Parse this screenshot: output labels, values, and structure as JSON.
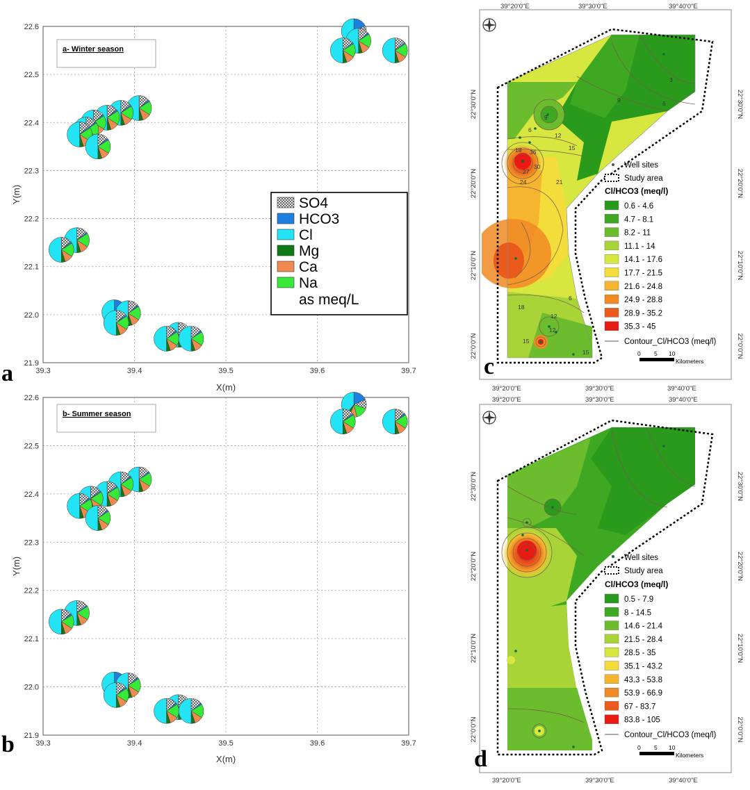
{
  "panels": {
    "a": {
      "letter": "a",
      "title": "a- Winter season"
    },
    "b": {
      "letter": "b",
      "title": "b- Summer season"
    },
    "c": {
      "letter": "c"
    },
    "d": {
      "letter": "d"
    }
  },
  "pie_axes": {
    "xlabel": "X(m)",
    "ylabel": "Y(m)",
    "x_ticks": [
      "39.3",
      "39.4",
      "39.5",
      "39.6",
      "39.7"
    ],
    "y_ticks": [
      "22.6",
      "22.5",
      "22.4",
      "22.3",
      "22.2",
      "22.1",
      "22.0",
      "21.9"
    ]
  },
  "pie_legend": {
    "items": [
      {
        "label": "SO4",
        "color": "hatch"
      },
      {
        "label": "HCO3",
        "color": "#1f7fe0"
      },
      {
        "label": "Cl",
        "color": "#22e4f4"
      },
      {
        "label": "Mg",
        "color": "#0e7a16"
      },
      {
        "label": "Ca",
        "color": "#f08a50"
      },
      {
        "label": "Na",
        "color": "#38ea38"
      }
    ],
    "units": "as meq/L"
  },
  "chart_data": [
    {
      "type": "scatter",
      "title": "a- Winter season",
      "xlabel": "X(m)",
      "ylabel": "Y(m)",
      "xlim": [
        39.3,
        39.7
      ],
      "ylim": [
        21.9,
        22.6
      ],
      "marker": "pie (SO4, HCO3, Cl, Mg, Ca, Na as meq/L)",
      "points": [
        {
          "x": 39.64,
          "y": 22.59,
          "hco3": true
        },
        {
          "x": 39.645,
          "y": 22.57
        },
        {
          "x": 39.628,
          "y": 22.55
        },
        {
          "x": 39.685,
          "y": 22.55
        },
        {
          "x": 39.405,
          "y": 22.43
        },
        {
          "x": 39.385,
          "y": 22.42
        },
        {
          "x": 39.37,
          "y": 22.41
        },
        {
          "x": 39.355,
          "y": 22.4
        },
        {
          "x": 39.347,
          "y": 22.385
        },
        {
          "x": 39.34,
          "y": 22.375
        },
        {
          "x": 39.36,
          "y": 22.35
        },
        {
          "x": 39.337,
          "y": 22.155
        },
        {
          "x": 39.32,
          "y": 22.135
        },
        {
          "x": 39.378,
          "y": 22.005,
          "hco3": true
        },
        {
          "x": 39.393,
          "y": 22.003
        },
        {
          "x": 39.38,
          "y": 21.983
        },
        {
          "x": 39.448,
          "y": 21.958
        },
        {
          "x": 39.435,
          "y": 21.95
        },
        {
          "x": 39.462,
          "y": 21.95
        }
      ]
    },
    {
      "type": "scatter",
      "title": "b- Summer season",
      "xlabel": "X(m)",
      "ylabel": "Y(m)",
      "xlim": [
        39.3,
        39.7
      ],
      "ylim": [
        21.9,
        22.6
      ],
      "marker": "pie (SO4, HCO3, Cl, Mg, Ca, Na as meq/L)",
      "points": [
        {
          "x": 39.64,
          "y": 22.585,
          "hco3": true
        },
        {
          "x": 39.628,
          "y": 22.55
        },
        {
          "x": 39.685,
          "y": 22.55
        },
        {
          "x": 39.405,
          "y": 22.43
        },
        {
          "x": 39.385,
          "y": 22.42
        },
        {
          "x": 39.37,
          "y": 22.4
        },
        {
          "x": 39.352,
          "y": 22.39
        },
        {
          "x": 39.34,
          "y": 22.375
        },
        {
          "x": 39.36,
          "y": 22.35
        },
        {
          "x": 39.337,
          "y": 22.153
        },
        {
          "x": 39.32,
          "y": 22.135
        },
        {
          "x": 39.378,
          "y": 22.005,
          "hco3": true
        },
        {
          "x": 39.393,
          "y": 22.003
        },
        {
          "x": 39.38,
          "y": 21.983
        },
        {
          "x": 39.448,
          "y": 21.958
        },
        {
          "x": 39.435,
          "y": 21.95
        },
        {
          "x": 39.462,
          "y": 21.95
        }
      ]
    }
  ],
  "maps": {
    "c": {
      "top_coords": [
        "39°20'0\"E",
        "39°30'0\"E",
        "39°40'0\"E"
      ],
      "bottom_coords": [
        "39°20'0\"E",
        "39°30'0\"E",
        "39°40'0\"E"
      ],
      "lat_coords": [
        "22°30'0\"N",
        "22°20'0\"N",
        "22°10'0\"N",
        "22°0'0\"N"
      ],
      "legend": {
        "wells": "Well sites",
        "study": "Study area",
        "title": "Cl/HCO3 (meq/l)",
        "classes": [
          {
            "label": "0.6 - 4.6",
            "color": "#2a9a1c"
          },
          {
            "label": "4.7 - 8.1",
            "color": "#3ea822"
          },
          {
            "label": "8.2 - 11",
            "color": "#6cbd2e"
          },
          {
            "label": "11.1 - 14",
            "color": "#a8d438"
          },
          {
            "label": "14.1 - 17.6",
            "color": "#d8e640"
          },
          {
            "label": "17.7 - 21.5",
            "color": "#f4dc3a"
          },
          {
            "label": "21.6 - 24.8",
            "color": "#f6b52e"
          },
          {
            "label": "24.9 - 28.8",
            "color": "#f08a24"
          },
          {
            "label": "28.9 - 35.2",
            "color": "#ea5a1c"
          },
          {
            "label": "35.3 - 45",
            "color": "#e81a14"
          }
        ],
        "contour": "Contour_Cl/HCO3 (meq/l)",
        "scale": [
          "0",
          "5",
          "10"
        ],
        "scale_unit": "Kilometers"
      },
      "contour_labels": [
        "3",
        "6",
        "9",
        "12",
        "15",
        "18",
        "21",
        "24",
        "27",
        "30",
        "36",
        "9",
        "6",
        "12",
        "15",
        "18",
        "6",
        "12",
        "15"
      ]
    },
    "d": {
      "top_coords": [
        "39°20'0\"E",
        "39°30'0\"E",
        "39°40'0\"E"
      ],
      "bottom_coords": [
        "39°20'0\"E",
        "39°30'0\"E",
        "39°40'0\"E"
      ],
      "lat_coords": [
        "22°30'0\"N",
        "22°20'0\"N",
        "22°10'0\"N",
        "22°0'0\"N"
      ],
      "legend": {
        "wells": "Well sites",
        "study": "Study area",
        "title": "Cl/HCO3 (meq/l)",
        "classes": [
          {
            "label": "0.5 - 7.9",
            "color": "#2a9a1c"
          },
          {
            "label": "8 - 14.5",
            "color": "#3ea822"
          },
          {
            "label": "14.6 - 21.4",
            "color": "#6cbd2e"
          },
          {
            "label": "21.5 - 28.4",
            "color": "#a8d438"
          },
          {
            "label": "28.5 - 35",
            "color": "#d8e640"
          },
          {
            "label": "35.1 - 43.2",
            "color": "#f4dc3a"
          },
          {
            "label": "43.3 - 53.8",
            "color": "#f6b52e"
          },
          {
            "label": "53.9 - 66.9",
            "color": "#f08a24"
          },
          {
            "label": "67 - 83.7",
            "color": "#ea5a1c"
          },
          {
            "label": "83.8 - 105",
            "color": "#e81a14"
          }
        ],
        "contour": "Contour_Cl/HCO3 (meq/l)",
        "scale": [
          "0",
          "5",
          "10"
        ],
        "scale_unit": "Kilometers"
      }
    }
  }
}
